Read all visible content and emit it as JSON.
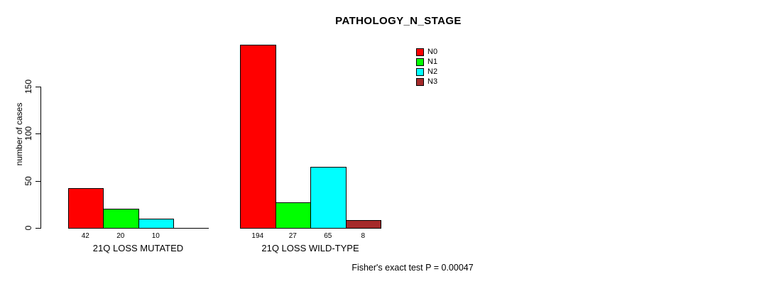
{
  "chart_data": {
    "type": "bar",
    "title": "PATHOLOGY_N_STAGE",
    "ylabel": "number of cases",
    "xlabel": "",
    "yticks": [
      0,
      50,
      100,
      150
    ],
    "ylim": [
      0,
      200
    ],
    "grid": false,
    "legend_position": "top-right",
    "bar_border_color": "#000000",
    "categories": [
      "21Q LOSS MUTATED",
      "21Q LOSS WILD-TYPE"
    ],
    "series": [
      {
        "name": "N0",
        "color": "#FF0000",
        "values": [
          42,
          194
        ]
      },
      {
        "name": "N1",
        "color": "#00FF00",
        "values": [
          20,
          27
        ]
      },
      {
        "name": "N2",
        "color": "#00FFFF",
        "values": [
          10,
          65
        ]
      },
      {
        "name": "N3",
        "color": "#A52A2A",
        "values": [
          0,
          8
        ]
      }
    ],
    "bar_value_labels_shown": true,
    "annotation": "Fisher's exact test P = 0.00047"
  }
}
